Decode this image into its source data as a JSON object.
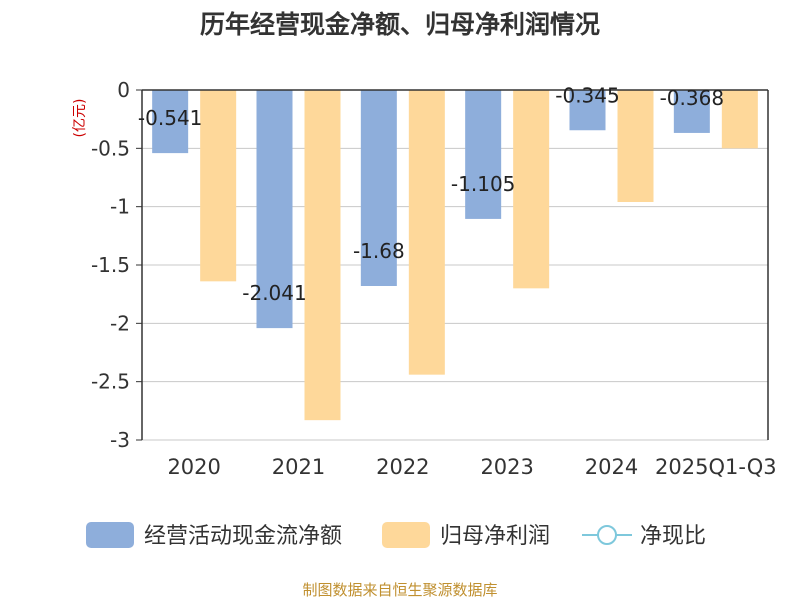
{
  "chart_data": {
    "type": "bar",
    "title": "历年经营现金净额、归母净利润情况",
    "ylabel": "(亿元)",
    "ylim": [
      -3,
      0
    ],
    "yticks": [
      0,
      -0.5,
      -1,
      -1.5,
      -2,
      -2.5,
      -3
    ],
    "categories": [
      "2020",
      "2021",
      "2022",
      "2023",
      "2024",
      "2025Q1-Q3"
    ],
    "series": [
      {
        "name": "经营活动现金流净额",
        "color": "#8eaedb",
        "values": [
          -0.541,
          -2.041,
          -1.68,
          -1.105,
          -0.345,
          -0.368
        ],
        "labels": [
          "-0.541",
          "-2.041",
          "-1.68",
          "-1.105",
          "-0.345",
          "-0.368"
        ]
      },
      {
        "name": "归母净利润",
        "color": "#fed89a",
        "values": [
          -1.64,
          -2.83,
          -2.44,
          -1.7,
          -0.96,
          -0.5
        ]
      }
    ],
    "line_series": {
      "name": "净现比",
      "color": "#7ec8dc"
    },
    "grid": true,
    "legend_position": "bottom"
  },
  "footer": {
    "source": "制图数据来自恒生聚源数据库"
  }
}
